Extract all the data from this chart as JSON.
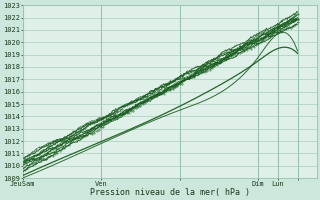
{
  "xlabel": "Pression niveau de la mer( hPa )",
  "ylim": [
    1009,
    1023
  ],
  "yticks": [
    1009,
    1010,
    1011,
    1012,
    1013,
    1014,
    1015,
    1016,
    1017,
    1018,
    1019,
    1020,
    1021,
    1022,
    1023
  ],
  "xlim": [
    0,
    180
  ],
  "xtick_positions": [
    0,
    48,
    96,
    144,
    156,
    168
  ],
  "xtick_labels": [
    "JeuSam",
    "Ven",
    "",
    "Dim",
    "Lun",
    ""
  ],
  "bg_color": "#cce8dc",
  "grid_color": "#99c4b0",
  "line_color": "#1a5e20",
  "plot_bg": "#dff0e8",
  "figsize": [
    3.2,
    2.0
  ],
  "dpi": 100
}
